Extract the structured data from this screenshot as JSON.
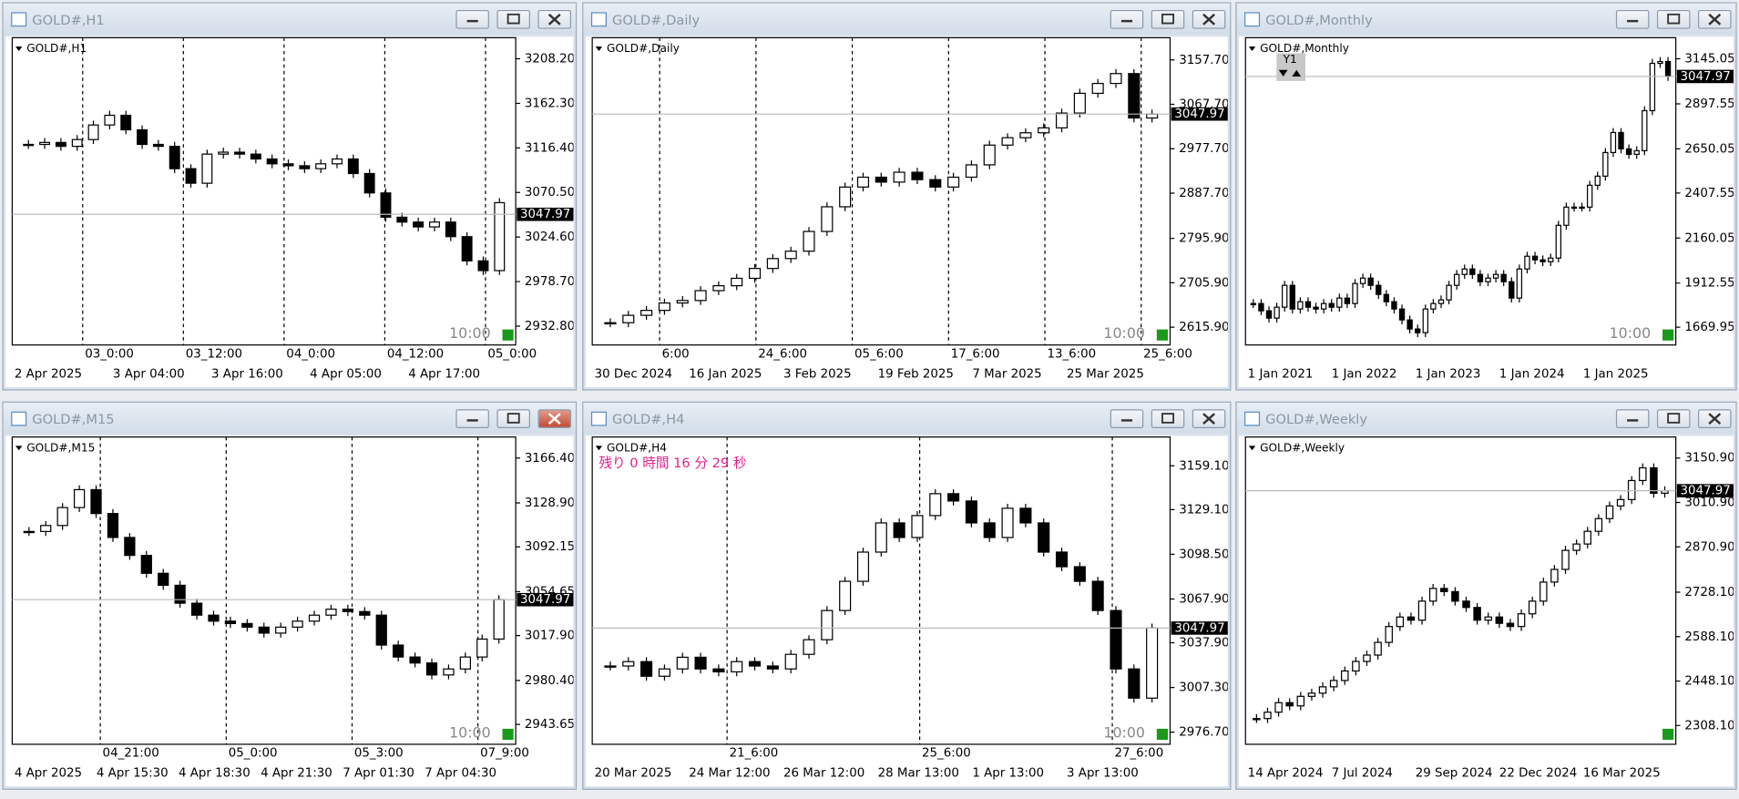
{
  "windows": [
    {
      "title": "GOLD#,H1",
      "label": "GOLD#,H1",
      "ylim": [
        2913.4,
        3229.9
      ],
      "price_ticks": [
        {
          "value": 3208.2,
          "label": "3208.20"
        },
        {
          "value": 3162.3,
          "label": "3162.30"
        },
        {
          "value": 3116.4,
          "label": "3116.40"
        },
        {
          "value": 3070.5,
          "label": "3070.50"
        },
        {
          "value": 3024.6,
          "label": "3024.60"
        },
        {
          "value": 2978.7,
          "label": "2978.70"
        },
        {
          "value": 2932.8,
          "label": "2932.80"
        }
      ],
      "current_price": {
        "value": 3047.97,
        "label": "3047.97"
      },
      "timer": "10:00",
      "separator_labels": [
        "03_0:00",
        "03_12:00",
        "04_0:00",
        "04_12:00",
        "05_0:00"
      ],
      "time_labels": [
        "2 Apr 2025",
        "3 Apr 04:00",
        "3 Apr 16:00",
        "4 Apr 05:00",
        "4 Apr 17:00"
      ],
      "closes": [
        3120,
        3122,
        3118,
        3125,
        3140,
        3150,
        3135,
        3120,
        3118,
        3095,
        3080,
        3110,
        3112,
        3110,
        3105,
        3100,
        3098,
        3095,
        3100,
        3105,
        3090,
        3070,
        3045,
        3040,
        3035,
        3040,
        3025,
        3000,
        2990,
        3060
      ]
    },
    {
      "title": "GOLD#,Daily",
      "label": "GOLD#,Daily",
      "ylim": [
        2579.9,
        3202.7
      ],
      "price_ticks": [
        {
          "value": 3157.7,
          "label": "3157.70"
        },
        {
          "value": 3067.7,
          "label": "3067.70"
        },
        {
          "value": 2977.7,
          "label": "2977.70"
        },
        {
          "value": 2887.7,
          "label": "2887.70"
        },
        {
          "value": 2795.9,
          "label": "2795.90"
        },
        {
          "value": 2705.9,
          "label": "2705.90"
        },
        {
          "value": 2615.9,
          "label": "2615.90"
        }
      ],
      "current_price": {
        "value": 3047.97,
        "label": "3047.97"
      },
      "timer": "10:00",
      "separator_labels": [
        "6:00",
        "24_6:00",
        "05_6:00",
        "17_6:00",
        "13_6:00",
        "25_6:00"
      ],
      "time_labels": [
        "30 Dec 2024",
        "16 Jan 2025",
        "3 Feb 2025",
        "19 Feb 2025",
        "7 Mar 2025",
        "25 Mar 2025"
      ],
      "closes": [
        2625,
        2640,
        2650,
        2665,
        2670,
        2690,
        2700,
        2715,
        2735,
        2755,
        2770,
        2810,
        2860,
        2900,
        2920,
        2910,
        2930,
        2915,
        2900,
        2920,
        2945,
        2985,
        3000,
        3010,
        3020,
        3050,
        3090,
        3110,
        3130,
        3040,
        3048
      ]
    },
    {
      "title": "GOLD#,Monthly",
      "label": "GOLD#,Monthly",
      "badge": "Y1",
      "ylim": [
        1572.4,
        3260.9
      ],
      "price_ticks": [
        {
          "value": 3145.05,
          "label": "3145.05"
        },
        {
          "value": 2897.55,
          "label": "2897.55"
        },
        {
          "value": 2650.05,
          "label": "2650.05"
        },
        {
          "value": 2407.55,
          "label": "2407.55"
        },
        {
          "value": 2160.05,
          "label": "2160.05"
        },
        {
          "value": 1912.55,
          "label": "1912.55"
        },
        {
          "value": 1669.95,
          "label": "1669.95"
        }
      ],
      "current_price": {
        "value": 3047.97,
        "label": "3047.97"
      },
      "timer": "10:00",
      "time_labels": [
        "1 Jan 2021",
        "1 Jan 2022",
        "1 Jan 2023",
        "1 Jan 2024",
        "1 Jan 2025"
      ],
      "closes": [
        1800,
        1760,
        1720,
        1780,
        1900,
        1770,
        1810,
        1780,
        1770,
        1800,
        1780,
        1830,
        1800,
        1910,
        1940,
        1900,
        1850,
        1810,
        1770,
        1710,
        1660,
        1640,
        1770,
        1800,
        1820,
        1900,
        1960,
        1990,
        1960,
        1920,
        1940,
        1960,
        1920,
        1830,
        1990,
        2060,
        2040,
        2030,
        2050,
        2230,
        2330,
        2330,
        2330,
        2450,
        2500,
        2630,
        2740,
        2650,
        2620,
        2640,
        2860,
        3120,
        3130,
        3048
      ]
    },
    {
      "title": "GOLD#,M15",
      "label": "GOLD#,M15",
      "ylim": [
        2927.0,
        3184.0
      ],
      "price_ticks": [
        {
          "value": 3166.4,
          "label": "3166.40"
        },
        {
          "value": 3128.9,
          "label": "3128.90"
        },
        {
          "value": 3092.15,
          "label": "3092.15"
        },
        {
          "value": 3054.65,
          "label": "3054.65"
        },
        {
          "value": 3017.9,
          "label": "3017.90"
        },
        {
          "value": 2980.4,
          "label": "2980.40"
        },
        {
          "value": 2943.65,
          "label": "2943.65"
        }
      ],
      "current_price": {
        "value": 3047.97,
        "label": "3047.97"
      },
      "timer": "10:00",
      "separator_labels": [
        "04_21:00",
        "05_0:00",
        "05_3:00",
        "07_9:00"
      ],
      "time_labels": [
        "4 Apr 2025",
        "4 Apr 15:30",
        "4 Apr 18:30",
        "4 Apr 21:30",
        "7 Apr 01:30",
        "7 Apr 04:30"
      ],
      "closes": [
        3105,
        3110,
        3125,
        3140,
        3120,
        3100,
        3085,
        3070,
        3060,
        3045,
        3035,
        3030,
        3028,
        3025,
        3020,
        3025,
        3030,
        3035,
        3040,
        3038,
        3035,
        3010,
        3000,
        2995,
        2985,
        2990,
        3000,
        3015,
        3048
      ]
    },
    {
      "title": "GOLD#,H4",
      "label": "GOLD#,H4",
      "countdown": "残り 0 時間 16 分 29 秒",
      "ylim": [
        2968.4,
        3178.8
      ],
      "price_ticks": [
        {
          "value": 3159.1,
          "label": "3159.10"
        },
        {
          "value": 3129.1,
          "label": "3129.10"
        },
        {
          "value": 3098.5,
          "label": "3098.50"
        },
        {
          "value": 3067.9,
          "label": "3067.90"
        },
        {
          "value": 3037.9,
          "label": "3037.90"
        },
        {
          "value": 3007.3,
          "label": "3007.30"
        },
        {
          "value": 2976.7,
          "label": "2976.70"
        }
      ],
      "current_price": {
        "value": 3047.97,
        "label": "3047.97"
      },
      "timer": "10:00",
      "separator_labels": [
        "21_6:00",
        "25_6:00",
        "27_6:00"
      ],
      "time_labels": [
        "20 Mar 2025",
        "24 Mar 12:00",
        "26 Mar 12:00",
        "28 Mar 13:00",
        "1 Apr 13:00",
        "3 Apr 13:00"
      ],
      "closes": [
        3022,
        3025,
        3015,
        3020,
        3028,
        3020,
        3018,
        3025,
        3022,
        3020,
        3030,
        3040,
        3060,
        3080,
        3100,
        3120,
        3110,
        3125,
        3140,
        3135,
        3120,
        3110,
        3130,
        3120,
        3100,
        3090,
        3080,
        3060,
        3020,
        3000,
        3048
      ]
    },
    {
      "title": "GOLD#,Weekly",
      "label": "GOLD#,Weekly",
      "ylim": [
        2248.9,
        3217.1
      ],
      "price_ticks": [
        {
          "value": 3150.9,
          "label": "3150.90"
        },
        {
          "value": 3010.9,
          "label": "3010.90"
        },
        {
          "value": 2870.9,
          "label": "2870.90"
        },
        {
          "value": 2728.1,
          "label": "2728.10"
        },
        {
          "value": 2588.1,
          "label": "2588.10"
        },
        {
          "value": 2448.1,
          "label": "2448.10"
        },
        {
          "value": 2308.1,
          "label": "2308.10"
        }
      ],
      "current_price": {
        "value": 3047.97,
        "label": "3047.97"
      },
      "time_labels": [
        "14 Apr 2024",
        "7 Jul 2024",
        "29 Sep 2024",
        "22 Dec 2024",
        "16 Mar 2025"
      ],
      "closes": [
        2330,
        2350,
        2380,
        2370,
        2400,
        2410,
        2430,
        2450,
        2480,
        2510,
        2530,
        2570,
        2620,
        2650,
        2640,
        2700,
        2740,
        2730,
        2700,
        2680,
        2640,
        2650,
        2630,
        2620,
        2660,
        2700,
        2760,
        2800,
        2860,
        2880,
        2920,
        2960,
        3000,
        3020,
        3080,
        3120,
        3040,
        3048
      ]
    }
  ]
}
